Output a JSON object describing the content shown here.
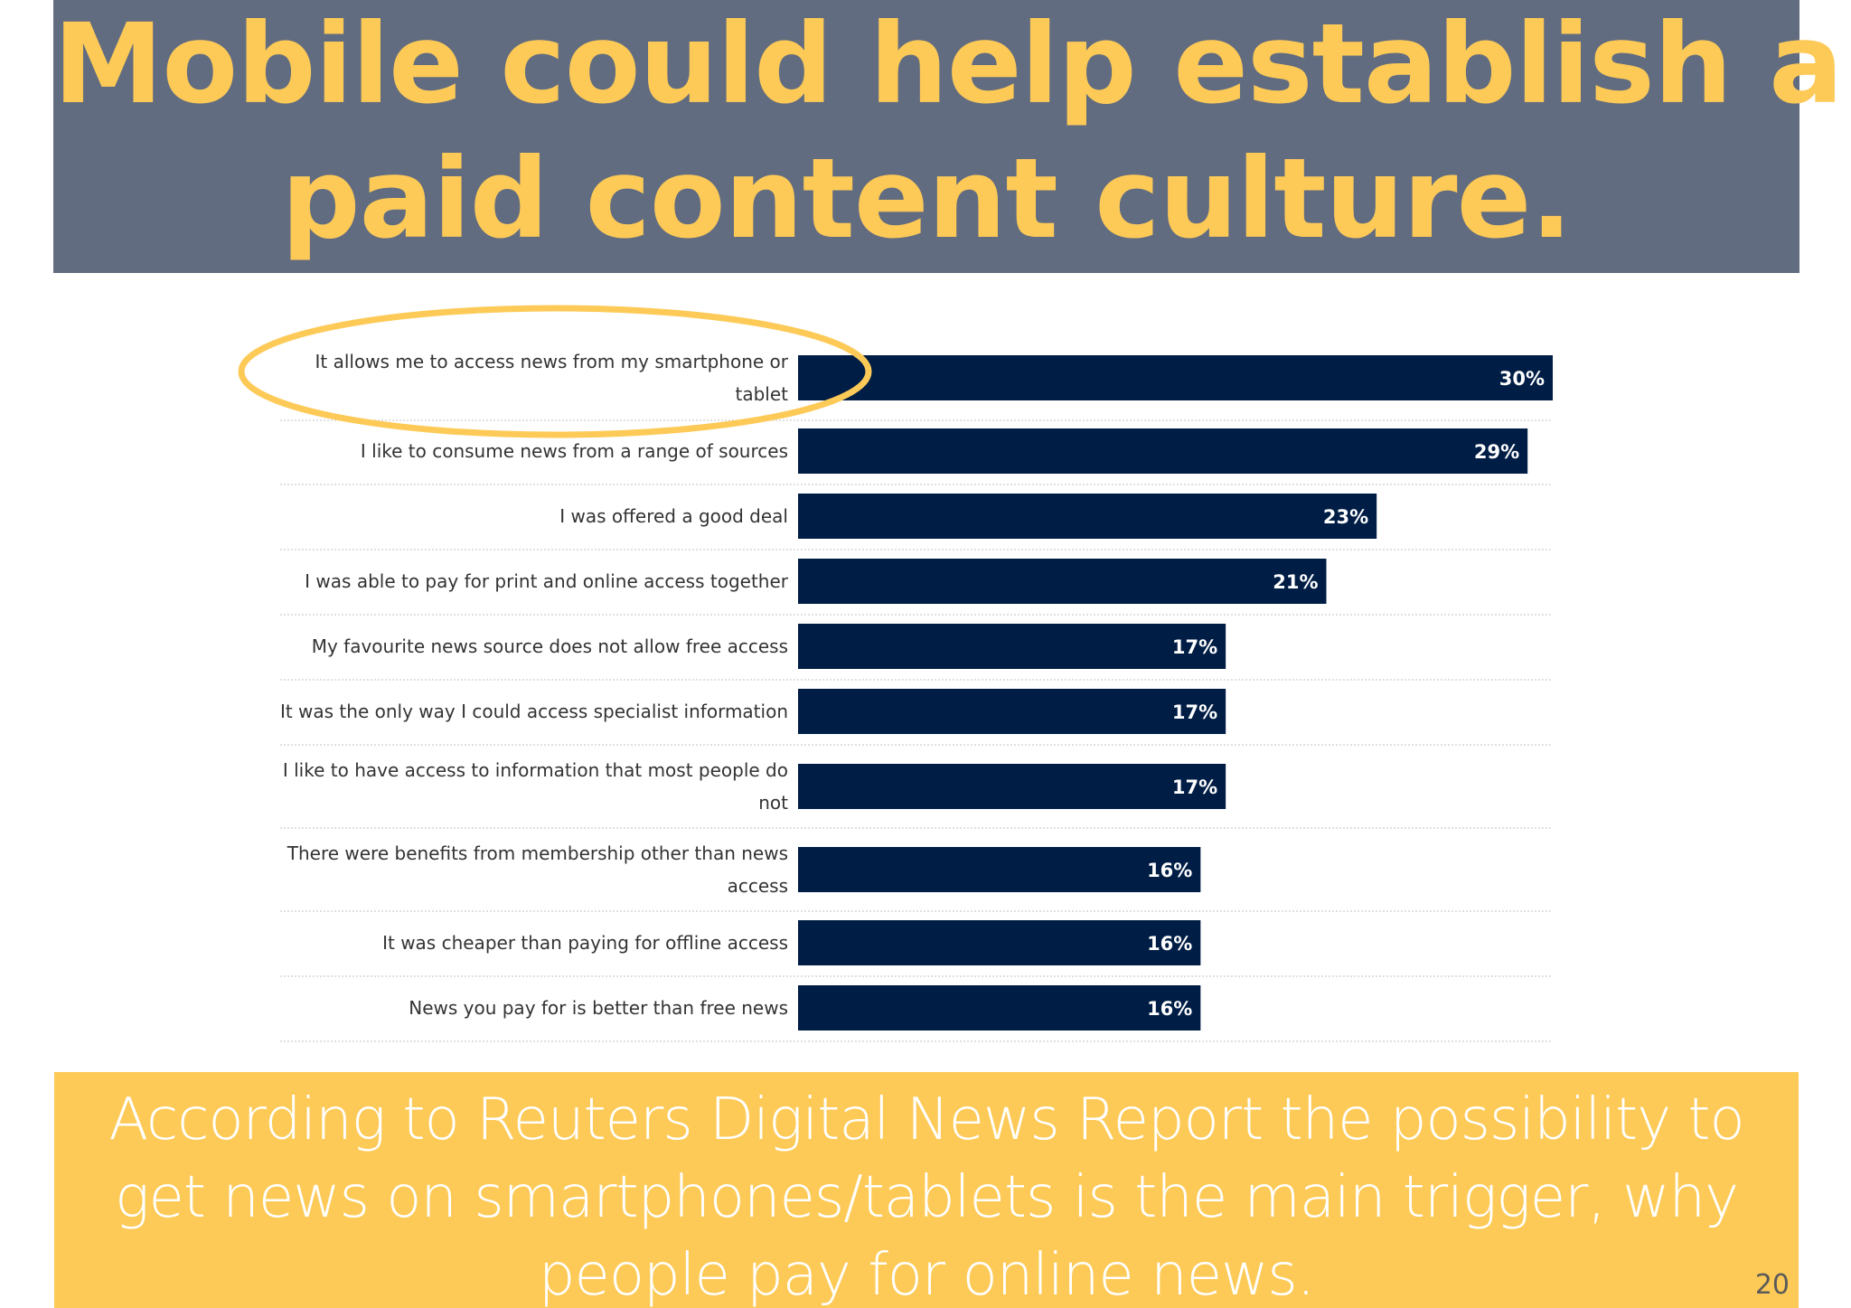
{
  "slide": {
    "title_line1": "Mobile could help establish a",
    "title_line2": "paid content culture.",
    "footer_text": "According to Reuters Digital News Report the possibility to get news on smartphones/tablets is the main trigger, why people pay for online news.",
    "page_number": "20",
    "colors": {
      "title_banner": "#626c80",
      "title_text": "#fdca57",
      "footer_banner": "#fdca57",
      "bar": "#001d45",
      "highlight_ellipse": "#fdca57"
    }
  },
  "chart_data": {
    "type": "bar",
    "orientation": "horizontal",
    "title": "",
    "xlabel": "",
    "ylabel": "",
    "xlim": [
      0,
      30
    ],
    "grid": false,
    "categories": [
      [
        "It allows me to access news from my smartphone or",
        "tablet"
      ],
      [
        "I like to consume news from a range of sources"
      ],
      [
        "I was offered a good deal"
      ],
      [
        "I was able to pay for print and online access together"
      ],
      [
        "My favourite news source does not allow free access"
      ],
      [
        "It was the only way I could access specialist information"
      ],
      [
        "I like to have access to information that most people do",
        "not"
      ],
      [
        "There were benefits from membership other than news",
        "access"
      ],
      [
        "It was cheaper than paying for offline access"
      ],
      [
        "News you pay for is better than free news"
      ]
    ],
    "values": [
      30,
      29,
      23,
      21,
      17,
      17,
      17,
      16,
      16,
      16
    ],
    "value_labels": [
      "30%",
      "29%",
      "23%",
      "21%",
      "17%",
      "17%",
      "17%",
      "16%",
      "16%",
      "16%"
    ],
    "highlighted_index": 0
  }
}
